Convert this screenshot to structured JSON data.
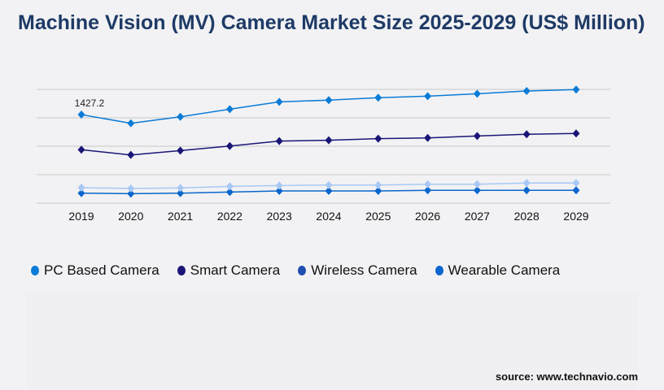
{
  "title": "Machine Vision (MV) Camera Market Size 2025-2029 (US$ Million)",
  "source": "source: www.technavio.com",
  "chart_data": {
    "type": "line",
    "title": "Machine Vision (MV) Camera Market Size 2025-2029 (US$ Million)",
    "categories": [
      "2019",
      "2020",
      "2021",
      "2022",
      "2023",
      "2024",
      "2025",
      "2026",
      "2027",
      "2028",
      "2029"
    ],
    "ylim": [
      0,
      1834
    ],
    "grid": true,
    "legend_position": "bottom",
    "annotations": [
      {
        "series": "PC Based Camera",
        "category": "2019",
        "text": "1427.2"
      }
    ],
    "series": [
      {
        "name": "PC Based Camera",
        "color": "#0a7bd6",
        "line_color": "#0a7bd6",
        "values": [
          1427.2,
          1287,
          1392,
          1515,
          1633,
          1660,
          1699,
          1725,
          1764,
          1808,
          1830
        ]
      },
      {
        "name": "Smart Camera",
        "color": "#1a1677",
        "line_color": "#1a1677",
        "values": [
          861,
          777,
          847,
          921,
          1000,
          1013,
          1039,
          1052,
          1083,
          1110,
          1123
        ]
      },
      {
        "name": "Wireless Camera",
        "color": "#1f4fb0",
        "line_color": "#a8c8f5",
        "values": [
          249,
          236,
          245,
          271,
          284,
          292,
          292,
          305,
          305,
          324,
          324
        ]
      },
      {
        "name": "Wearable Camera",
        "color": "#0a66cc",
        "line_color": "#0a66cc",
        "values": [
          161,
          153,
          161,
          179,
          196,
          196,
          196,
          206,
          206,
          206,
          206
        ]
      }
    ]
  }
}
